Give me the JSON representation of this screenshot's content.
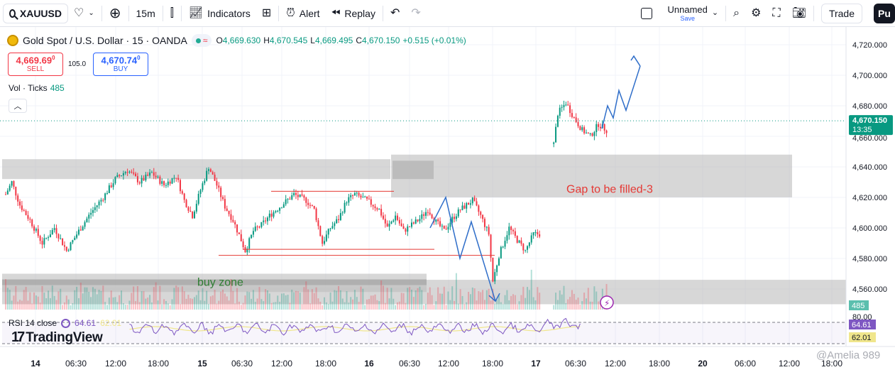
{
  "toolbar": {
    "symbol": "XAUUSD",
    "interval": "15m",
    "indicators_label": "Indicators",
    "alert_label": "Alert",
    "replay_label": "Replay",
    "layout_name": "Unnamed",
    "layout_status": "Save",
    "trade_label": "Trade",
    "publish_label": "Pu"
  },
  "legend": {
    "title": "Gold Spot / U.S. Dollar · 15 · OANDA",
    "open_label": "O",
    "open": "4,669.630",
    "high_label": "H",
    "high": "4,670.545",
    "low_label": "L",
    "low": "4,669.495",
    "close_label": "C",
    "close": "4,670.150",
    "change": "+0.515 (+0.01%)"
  },
  "quote": {
    "sell_price": "4,669.69",
    "sell_sup": "0",
    "sell_label": "SELL",
    "spread": "105.0",
    "buy_price": "4,670.74",
    "buy_sup": "0",
    "buy_label": "BUY"
  },
  "volume_legend": {
    "label": "Vol · Ticks",
    "value": "485"
  },
  "rsi_legend": {
    "label": "RSI 14 close",
    "rsi": "64.61",
    "ma": "62.01"
  },
  "brand": {
    "name": "TradingView"
  },
  "watermark": "@Amelia 989",
  "colors": {
    "up": "#089981",
    "down": "#f23645",
    "zone": "#bdbdbd",
    "arrow": "#2f6ec9",
    "rsi": "#7e57c2",
    "rsi_ma": "#f0e68c",
    "annotation_text": "#e53935",
    "buy_zone_text": "#2e7d32"
  },
  "chart_data": {
    "type": "candlestick",
    "symbol": "XAUUSD",
    "interval": "15m",
    "y_axis": {
      "range": [
        4546,
        4730
      ],
      "ticks": [
        "4,720.000",
        "4,700.000",
        "4,680.000",
        "4,640.000",
        "4,620.000",
        "4,600.000",
        "4,580.000",
        "4,560.000"
      ],
      "last_price": "4,670.150",
      "countdown": "13:35",
      "partial_label": "4,660.000",
      "volume_label": "485"
    },
    "x_axis": {
      "ticks": [
        "14",
        "06:30",
        "12:00",
        "18:00",
        "15",
        "06:30",
        "12:00",
        "18:00",
        "16",
        "06:30",
        "12:00",
        "18:00",
        "17",
        "06:30",
        "12:00",
        "18:00",
        "20",
        "06:00",
        "12:00",
        "18:00"
      ],
      "bold_ticks": [
        "14",
        "15",
        "16",
        "17",
        "20"
      ]
    },
    "price_path": [
      [
        0,
        4622
      ],
      [
        3,
        4630
      ],
      [
        7,
        4615
      ],
      [
        12,
        4605
      ],
      [
        18,
        4590
      ],
      [
        24,
        4600
      ],
      [
        30,
        4585
      ],
      [
        36,
        4598
      ],
      [
        42,
        4610
      ],
      [
        48,
        4620
      ],
      [
        54,
        4632
      ],
      [
        60,
        4638
      ],
      [
        66,
        4630
      ],
      [
        72,
        4636
      ],
      [
        78,
        4628
      ],
      [
        84,
        4634
      ],
      [
        88,
        4618
      ],
      [
        92,
        4608
      ],
      [
        96,
        4625
      ],
      [
        100,
        4640
      ],
      [
        104,
        4628
      ],
      [
        108,
        4614
      ],
      [
        112,
        4605
      ],
      [
        116,
        4592
      ],
      [
        118,
        4585
      ],
      [
        122,
        4598
      ],
      [
        126,
        4602
      ],
      [
        130,
        4608
      ],
      [
        136,
        4615
      ],
      [
        142,
        4622
      ],
      [
        148,
        4618
      ],
      [
        152,
        4612
      ],
      [
        156,
        4590
      ],
      [
        160,
        4600
      ],
      [
        164,
        4606
      ],
      [
        168,
        4618
      ],
      [
        172,
        4622
      ],
      [
        178,
        4618
      ],
      [
        184,
        4612
      ],
      [
        188,
        4600
      ],
      [
        192,
        4608
      ],
      [
        196,
        4598
      ],
      [
        200,
        4602
      ],
      [
        204,
        4606
      ],
      [
        208,
        4612
      ],
      [
        212,
        4604
      ],
      [
        216,
        4598
      ],
      [
        220,
        4606
      ],
      [
        224,
        4612
      ],
      [
        230,
        4618
      ],
      [
        234,
        4608
      ],
      [
        238,
        4596
      ],
      [
        240,
        4565
      ],
      [
        243,
        4582
      ],
      [
        248,
        4600
      ],
      [
        252,
        4592
      ],
      [
        256,
        4585
      ],
      [
        260,
        4596
      ],
      [
        263,
        4596
      ],
      [
        270,
        4655
      ],
      [
        272,
        4675
      ],
      [
        276,
        4682
      ],
      [
        280,
        4672
      ],
      [
        284,
        4664
      ],
      [
        288,
        4660
      ],
      [
        292,
        4668
      ],
      [
        296,
        4664
      ],
      [
        300,
        4670
      ]
    ],
    "annotations": [
      {
        "type": "zone",
        "label": "",
        "price_range": [
          4632,
          4645
        ]
      },
      {
        "type": "zone",
        "label": "",
        "price_range": [
          4632,
          4644
        ]
      },
      {
        "type": "zone",
        "label": "Gap to be filled-3",
        "price_range": [
          4620,
          4648
        ]
      },
      {
        "type": "zone",
        "label": "buy zone",
        "price_range": [
          4558,
          4570
        ]
      },
      {
        "type": "zone",
        "label": "",
        "price_range": [
          4550,
          4566
        ]
      },
      {
        "type": "line",
        "price": 4624
      },
      {
        "type": "line",
        "price": 4586
      },
      {
        "type": "line",
        "price": 4582
      },
      {
        "type": "projection",
        "label": "down arrow",
        "points": [
          [
            4600
          ],
          [
            4620
          ],
          [
            4580
          ],
          [
            4604
          ],
          [
            4552
          ]
        ]
      },
      {
        "type": "projection",
        "label": "up arrow",
        "points": [
          [
            4665
          ],
          [
            4680
          ],
          [
            4672
          ],
          [
            4690
          ],
          [
            4677
          ],
          [
            4706
          ]
        ]
      }
    ],
    "rsi": {
      "period": 14,
      "last": 64.61,
      "ma_last": 62.01,
      "upper": 80
    },
    "grid": true
  }
}
